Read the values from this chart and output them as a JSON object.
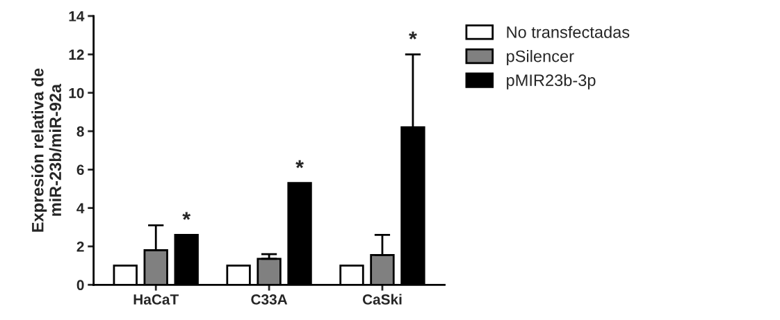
{
  "chart_data": {
    "type": "bar",
    "ylabel": "Expresión relativa de\nmiR-23b/miR-92a",
    "categories": [
      "HaCaT",
      "C33A",
      "CaSki"
    ],
    "series": [
      {
        "name": "No transfectadas",
        "color": "#ffffff",
        "values": [
          1,
          1,
          1
        ]
      },
      {
        "name": "pSilencer",
        "color": "#808080",
        "values": [
          1.8,
          1.35,
          1.55
        ],
        "errors": [
          1.3,
          0.25,
          1.05
        ]
      },
      {
        "name": "pMIR23b-3p",
        "color": "#000000",
        "values": [
          2.6,
          5.3,
          8.2
        ],
        "errors": [
          null,
          null,
          3.8
        ]
      }
    ],
    "ylim": [
      0,
      14
    ],
    "yticks": [
      0,
      2,
      4,
      6,
      8,
      10,
      12,
      14
    ],
    "grid": false,
    "legend": "top right",
    "annotations": [
      "*",
      "*",
      "*"
    ]
  }
}
